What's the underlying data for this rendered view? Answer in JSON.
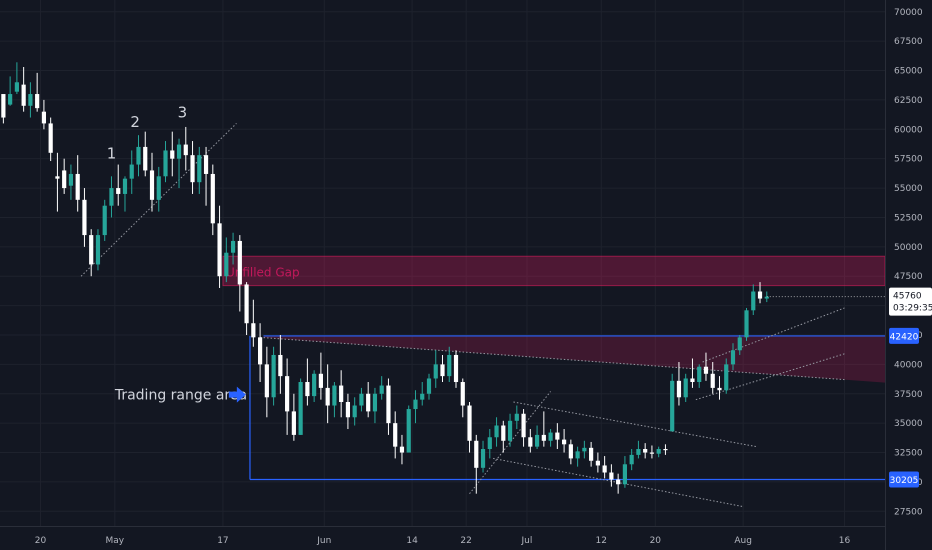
{
  "chart_data": {
    "type": "candlestick",
    "y_axis": {
      "ticks": [
        70000,
        67500,
        65000,
        62500,
        60000,
        57500,
        55000,
        52500,
        50000,
        47500,
        45000,
        42500,
        40000,
        37500,
        35000,
        32500,
        30000,
        27500
      ],
      "ylim": [
        26250,
        71000
      ]
    },
    "x_axis": {
      "ticks": [
        {
          "label": "20",
          "t": 6
        },
        {
          "label": "May",
          "t": 17
        },
        {
          "label": "17",
          "t": 33
        },
        {
          "label": "Jun",
          "t": 48
        },
        {
          "label": "14",
          "t": 61
        },
        {
          "label": "22",
          "t": 69
        },
        {
          "label": "Jul",
          "t": 78
        },
        {
          "label": "12",
          "t": 89
        },
        {
          "label": "20",
          "t": 97
        },
        {
          "label": "Aug",
          "t": 110
        },
        {
          "label": "16",
          "t": 125
        }
      ],
      "xlim": [
        0,
        131
      ]
    },
    "colors": {
      "up": "#26a69a",
      "down": "#ffffff",
      "level_line": "#2962ff",
      "gap_zone": "#e91e63"
    },
    "price_tag": {
      "value": "45760",
      "countdown": "03:29:35"
    },
    "levels": [
      {
        "label": "42420",
        "value": 42420,
        "t_start": 39
      },
      {
        "label": "30205",
        "value": 30205,
        "t_start": 37
      }
    ],
    "zones": [
      {
        "label": "Unfilled Gap",
        "t_start": 33,
        "y_top": 49200,
        "y_bottom": 46700
      },
      {
        "label": "",
        "t_start": 39,
        "y_top": 42420,
        "y_bottom": 38800,
        "polygon": true
      }
    ],
    "annotations": [
      {
        "text": "1",
        "t": 16.5,
        "y": 57500
      },
      {
        "text": "2",
        "t": 20,
        "y": 60200
      },
      {
        "text": "3",
        "t": 27,
        "y": 61000
      },
      {
        "text": "Trading range area",
        "t": 17,
        "y": 37000
      }
    ],
    "trendlines": [
      {
        "from": [
          12,
          47500
        ],
        "to": [
          35,
          60500
        ]
      },
      {
        "from": [
          38.5,
          42300
        ],
        "to": [
          125,
          38700
        ]
      },
      {
        "from": [
          69.5,
          29000
        ],
        "to": [
          81.5,
          37700
        ]
      },
      {
        "from": [
          76,
          36800
        ],
        "to": [
          112,
          33000
        ]
      },
      {
        "from": [
          73,
          32000
        ],
        "to": [
          110,
          27900
        ]
      },
      {
        "from": [
          104,
          40200
        ],
        "to": [
          125,
          44800
        ]
      },
      {
        "from": [
          103,
          37000
        ],
        "to": [
          125,
          40900
        ]
      }
    ],
    "candles": [
      [
        63000,
        62100,
        61000,
        60500
      ],
      [
        62100,
        64500,
        63000,
        62000
      ],
      [
        63200,
        65700,
        64000,
        63000
      ],
      [
        63800,
        65300,
        62000,
        61500
      ],
      [
        62000,
        64000,
        63000,
        61000
      ],
      [
        63000,
        64800,
        61800,
        61500
      ],
      [
        61500,
        62500,
        60500,
        60000
      ],
      [
        60500,
        61000,
        58000,
        57300
      ],
      [
        56000,
        58000,
        55800,
        53000
      ],
      [
        56500,
        57500,
        55000,
        54500
      ],
      [
        55200,
        57000,
        56200,
        54000
      ],
      [
        56200,
        57800,
        54000,
        53000
      ],
      [
        54000,
        55000,
        51000,
        50000
      ],
      [
        51000,
        51500,
        48500,
        47500
      ],
      [
        48500,
        51500,
        51000,
        48000
      ],
      [
        51000,
        54000,
        53500,
        50500
      ],
      [
        53500,
        56000,
        55000,
        52500
      ],
      [
        55000,
        57000,
        54500,
        53500
      ],
      [
        54500,
        56000,
        55800,
        53000
      ],
      [
        55800,
        58200,
        57000,
        54500
      ],
      [
        57000,
        59500,
        58500,
        56000
      ],
      [
        58500,
        59800,
        56500,
        56000
      ],
      [
        56500,
        58000,
        54000,
        53000
      ],
      [
        54000,
        56800,
        56000,
        53000
      ],
      [
        56000,
        59000,
        58200,
        55500
      ],
      [
        58200,
        59800,
        57500,
        56000
      ],
      [
        57500,
        59200,
        58700,
        55000
      ],
      [
        58700,
        60200,
        57800,
        56500
      ],
      [
        57800,
        59000,
        55500,
        54500
      ],
      [
        55500,
        58500,
        57800,
        54500
      ],
      [
        57800,
        58500,
        56200,
        53500
      ],
      [
        56200,
        57000,
        52000,
        51000
      ],
      [
        52000,
        53500,
        47500,
        46500
      ],
      [
        47500,
        50800,
        49500,
        47000
      ],
      [
        49500,
        51200,
        50500,
        48500
      ],
      [
        50500,
        51000,
        46800,
        44500
      ],
      [
        46800,
        47000,
        43500,
        42500
      ],
      [
        43500,
        45500,
        42300,
        41500
      ],
      [
        42300,
        43500,
        40000,
        38500
      ],
      [
        40000,
        41500,
        37200,
        35500
      ],
      [
        37200,
        41500,
        40800,
        36500
      ],
      [
        40800,
        42500,
        39000,
        37500
      ],
      [
        39000,
        40500,
        36000,
        34000
      ],
      [
        36000,
        37500,
        34000,
        33500
      ],
      [
        34000,
        38800,
        38500,
        34000
      ],
      [
        38500,
        40500,
        37300,
        36500
      ],
      [
        37300,
        39500,
        39200,
        36800
      ],
      [
        39200,
        41000,
        38000,
        37000
      ],
      [
        38000,
        40000,
        36500,
        35000
      ],
      [
        36500,
        38500,
        38200,
        35500
      ],
      [
        38200,
        39500,
        36800,
        35500
      ],
      [
        36800,
        37500,
        35500,
        34500
      ],
      [
        35500,
        37200,
        36500,
        34800
      ],
      [
        36500,
        38000,
        37500,
        36000
      ],
      [
        37500,
        38500,
        36000,
        35500
      ],
      [
        36000,
        38000,
        37500,
        35000
      ],
      [
        37500,
        39000,
        38200,
        37000
      ],
      [
        38200,
        38800,
        35000,
        34000
      ],
      [
        35000,
        36000,
        33000,
        32000
      ],
      [
        33000,
        34000,
        32500,
        31500
      ],
      [
        32500,
        36500,
        36200,
        32500
      ],
      [
        36200,
        37800,
        37000,
        35000
      ],
      [
        37000,
        38500,
        37500,
        36500
      ],
      [
        37500,
        39200,
        38800,
        37000
      ],
      [
        38800,
        41200,
        40000,
        38000
      ],
      [
        40000,
        40800,
        39000,
        38500
      ],
      [
        39000,
        41500,
        40800,
        38500
      ],
      [
        40800,
        41200,
        38500,
        38000
      ],
      [
        38500,
        38800,
        36500,
        35500
      ],
      [
        36500,
        36800,
        33500,
        32500
      ],
      [
        33500,
        34000,
        31200,
        29000
      ],
      [
        31200,
        33500,
        32800,
        30800
      ],
      [
        32800,
        34500,
        33800,
        32000
      ],
      [
        33800,
        35500,
        34800,
        33000
      ],
      [
        34800,
        35200,
        33500,
        32500
      ],
      [
        33500,
        35800,
        35200,
        33000
      ],
      [
        35200,
        36500,
        35800,
        34500
      ],
      [
        35800,
        36200,
        33800,
        33000
      ],
      [
        33800,
        34500,
        33000,
        32500
      ],
      [
        33000,
        34800,
        34000,
        32800
      ],
      [
        34000,
        36000,
        33500,
        33000
      ],
      [
        33500,
        34500,
        34200,
        33000
      ],
      [
        34200,
        35000,
        33600,
        32800
      ],
      [
        33600,
        34500,
        33200,
        32500
      ],
      [
        33200,
        33600,
        32000,
        31500
      ],
      [
        32000,
        33000,
        32600,
        31300
      ],
      [
        32600,
        33500,
        32900,
        32000
      ],
      [
        32900,
        33400,
        31800,
        31300
      ],
      [
        31800,
        32500,
        31400,
        30800
      ],
      [
        31400,
        32200,
        30800,
        30300
      ],
      [
        30800,
        31500,
        30200,
        29600
      ],
      [
        30200,
        30700,
        29800,
        29000
      ],
      [
        29800,
        32200,
        31500,
        29500
      ],
      [
        31500,
        32800,
        32300,
        31000
      ],
      [
        32300,
        33500,
        32800,
        32000
      ],
      [
        32800,
        33300,
        32500,
        32000
      ],
      [
        32500,
        33100,
        32400,
        32000
      ],
      [
        32400,
        33000,
        32800,
        32100
      ],
      [
        32800,
        33200,
        32700,
        32300
      ],
      [
        34300,
        39200,
        38600,
        34500
      ],
      [
        38600,
        40200,
        37200,
        36500
      ],
      [
        37200,
        39200,
        38800,
        36800
      ],
      [
        38800,
        40500,
        38500,
        38000
      ],
      [
        38500,
        40000,
        39800,
        38000
      ],
      [
        39800,
        41000,
        39200,
        38600
      ],
      [
        39200,
        40200,
        38000,
        37500
      ],
      [
        38000,
        39000,
        37800,
        37000
      ],
      [
        37800,
        40500,
        40000,
        37500
      ],
      [
        40000,
        41800,
        41200,
        39500
      ],
      [
        41200,
        42500,
        42300,
        40800
      ],
      [
        42300,
        44800,
        44600,
        42000
      ],
      [
        44600,
        46800,
        46200,
        44200
      ],
      [
        46200,
        47000,
        45600,
        45200
      ],
      [
        45600,
        46200,
        45760,
        45300
      ]
    ]
  }
}
